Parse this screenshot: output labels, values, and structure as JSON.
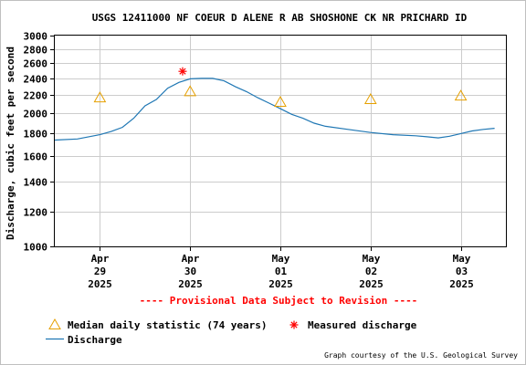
{
  "chart_data": {
    "type": "line",
    "title": "USGS 12411000 NF COEUR D ALENE R AB SHOSHONE CK NR PRICHARD ID",
    "ylabel": "Discharge, cubic feet per second",
    "xlabel": "",
    "ylim": [
      1000,
      3000
    ],
    "yscale": "log",
    "yticks": [
      1000,
      1200,
      1400,
      1600,
      1800,
      2000,
      2200,
      2400,
      2600,
      2800,
      3000
    ],
    "ytick_labels": [
      "1000",
      "1200",
      "1400",
      "1600",
      "1800",
      "2000",
      "2200",
      "2400",
      "2600",
      "2800",
      "3000"
    ],
    "xlim": [
      "2025-04-28T12:00",
      "2025-05-03T12:00"
    ],
    "xticks": [
      {
        "x": "2025-04-29T00:00",
        "lines": [
          "Apr",
          "29",
          "2025"
        ]
      },
      {
        "x": "2025-04-30T00:00",
        "lines": [
          "Apr",
          "30",
          "2025"
        ]
      },
      {
        "x": "2025-05-01T00:00",
        "lines": [
          "May",
          "01",
          "2025"
        ]
      },
      {
        "x": "2025-05-02T00:00",
        "lines": [
          "May",
          "02",
          "2025"
        ]
      },
      {
        "x": "2025-05-03T00:00",
        "lines": [
          "May",
          "03",
          "2025"
        ]
      }
    ],
    "grid": true,
    "annotation": "---- Provisional Data Subject to Revision ----",
    "series": [
      {
        "name": "Discharge",
        "color": "#1f77b4",
        "x": [
          "2025-04-28T12:00",
          "2025-04-28T18:00",
          "2025-04-29T00:00",
          "2025-04-29T03:00",
          "2025-04-29T06:00",
          "2025-04-29T09:00",
          "2025-04-29T12:00",
          "2025-04-29T15:00",
          "2025-04-29T18:00",
          "2025-04-29T21:00",
          "2025-04-30T00:00",
          "2025-04-30T03:00",
          "2025-04-30T06:00",
          "2025-04-30T09:00",
          "2025-04-30T12:00",
          "2025-04-30T15:00",
          "2025-04-30T18:00",
          "2025-04-30T21:00",
          "2025-05-01T00:00",
          "2025-05-01T03:00",
          "2025-05-01T06:00",
          "2025-05-01T09:00",
          "2025-05-01T12:00",
          "2025-05-01T18:00",
          "2025-05-02T00:00",
          "2025-05-02T06:00",
          "2025-05-02T12:00",
          "2025-05-02T15:00",
          "2025-05-02T18:00",
          "2025-05-02T21:00",
          "2025-05-03T00:00",
          "2025-05-03T03:00",
          "2025-05-03T06:00",
          "2025-05-03T09:00"
        ],
        "y": [
          1740,
          1750,
          1790,
          1820,
          1860,
          1950,
          2080,
          2150,
          2280,
          2350,
          2395,
          2400,
          2400,
          2370,
          2300,
          2240,
          2170,
          2110,
          2050,
          1990,
          1950,
          1900,
          1870,
          1840,
          1810,
          1790,
          1780,
          1770,
          1760,
          1775,
          1800,
          1825,
          1840,
          1850
        ]
      },
      {
        "name": "Median daily statistic (74 years)",
        "color": "#e6a000",
        "marker": "triangle",
        "x": [
          "2025-04-29T00:00",
          "2025-04-30T00:00",
          "2025-05-01T00:00",
          "2025-05-02T00:00",
          "2025-05-03T00:00"
        ],
        "y": [
          2170,
          2240,
          2120,
          2150,
          2190
        ]
      },
      {
        "name": "Measured discharge",
        "color": "#ff0000",
        "marker": "asterisk",
        "x": [
          "2025-04-29T22:00"
        ],
        "y": [
          2490
        ]
      }
    ],
    "legend": {
      "placement": "bottom-left",
      "entries": [
        {
          "label": "Median daily statistic (74 years)",
          "type": "triangle",
          "color": "#e6a000"
        },
        {
          "label": "Measured discharge",
          "type": "asterisk",
          "color": "#ff0000"
        },
        {
          "label": "Discharge",
          "type": "line",
          "color": "#1f77b4"
        }
      ]
    },
    "credit": "Graph courtesy of the U.S. Geological Survey"
  }
}
